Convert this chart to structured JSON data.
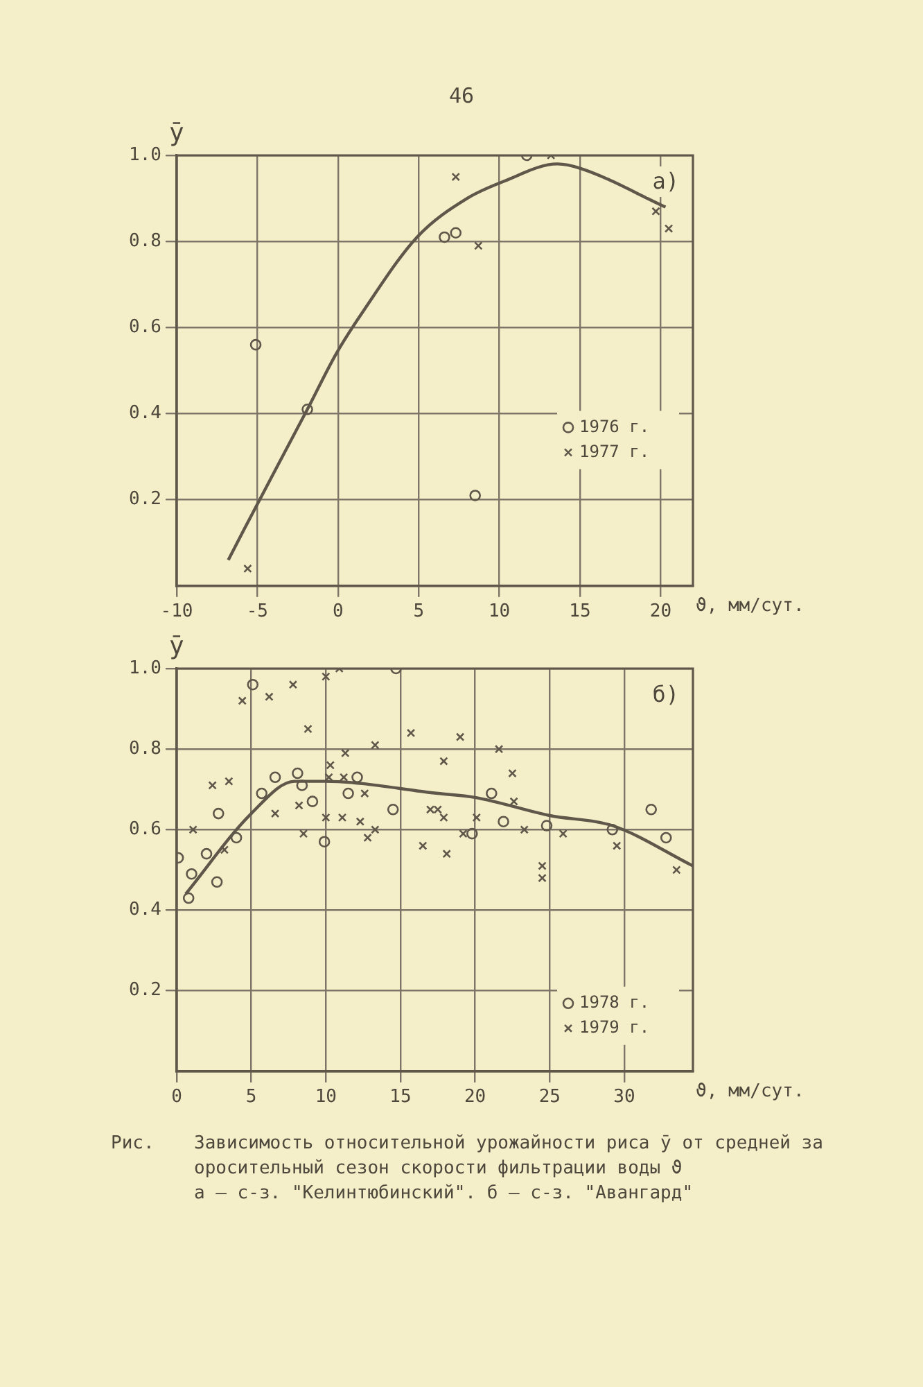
{
  "chart_data": [
    {
      "type": "scatter",
      "title": "а)",
      "xlabel": "ϑ, мм/сут.",
      "ylabel": "ȳ",
      "xlim": [
        -10,
        22
      ],
      "ylim": [
        0,
        1
      ],
      "xticks": [
        -10,
        -5,
        0,
        5,
        10,
        15,
        20
      ],
      "yticks": [
        0.2,
        0.4,
        0.6,
        0.8,
        {
          "value": 1,
          "label": "1.0"
        }
      ],
      "grid": true,
      "legend": "right",
      "annotations": [
        "46"
      ],
      "series": [
        {
          "name": "1976 г.",
          "color": "#5e574a",
          "marker": "circle",
          "x": [
            -5.1,
            -1.9,
            6.6,
            7.3,
            8.5,
            11.7
          ],
          "values": [
            0.56,
            0.41,
            0.81,
            0.82,
            0.21,
            1.0
          ]
        },
        {
          "name": "1977 г.",
          "color": "#5e574a",
          "marker": "cross",
          "x": [
            -5.6,
            7.3,
            8.7,
            13.2,
            19.7,
            20.5
          ],
          "values": [
            0.04,
            0.95,
            0.79,
            1.0,
            0.87,
            0.83
          ]
        },
        {
          "type": "line",
          "color": "#5e574a",
          "marker": "none",
          "line_style": "solid",
          "x": [
            -6.8,
            -5.7,
            -1.9,
            -0.1,
            1.6,
            4.9,
            8.0,
            10.3,
            13.6,
            15.0,
            20.3
          ],
          "values": [
            0.06,
            0.14,
            0.41,
            0.54,
            0.64,
            0.81,
            0.9,
            0.94,
            0.98,
            0.97,
            0.88
          ]
        }
      ]
    },
    {
      "type": "scatter",
      "title": "б)",
      "xlabel": "ϑ, мм/сут.",
      "ylabel": "ȳ",
      "xlim": [
        0,
        34.6
      ],
      "ylim": [
        0,
        1
      ],
      "xticks": [
        0,
        5,
        10,
        15,
        20,
        25,
        30
      ],
      "yticks": [
        0.2,
        0.4,
        0.6,
        0.8,
        {
          "value": 1,
          "label": "1.0"
        }
      ],
      "grid": true,
      "legend": "bottom right",
      "annotations": [
        "Рис.",
        "Зависимость относительной урожайности риса ȳ от средней за оросительный сезон скорости фильтрации воды ϑ",
        "а – с-з. \"Келинтюбинский\". б – с-з. \"Авангард\""
      ],
      "series": [
        {
          "name": "1978 г.",
          "color": "#5e574a",
          "marker": "circle",
          "x": [
            0.1,
            0.8,
            1.0,
            2.0,
            2.8,
            2.7,
            4.0,
            5.1,
            5.7,
            6.6,
            8.1,
            8.4,
            9.1,
            9.9,
            11.5,
            12.1,
            14.5,
            14.7,
            19.8,
            21.1,
            21.9,
            24.8,
            29.2,
            31.8,
            32.8
          ],
          "values": [
            0.53,
            0.43,
            0.49,
            0.54,
            0.64,
            0.47,
            0.58,
            0.96,
            0.69,
            0.73,
            0.74,
            0.71,
            0.67,
            0.57,
            0.69,
            0.73,
            0.65,
            1.0,
            0.59,
            0.69,
            0.62,
            0.61,
            0.6,
            0.65,
            0.58
          ]
        },
        {
          "name": "1979 г.",
          "color": "#5e574a",
          "marker": "cross",
          "x": [
            1.1,
            2.4,
            3.5,
            3.2,
            4.4,
            6.2,
            7.8,
            8.8,
            6.6,
            8.2,
            8.5,
            10.0,
            10.3,
            10.2,
            10.9,
            11.3,
            11.2,
            10.0,
            11.1,
            12.3,
            12.6,
            12.8,
            13.3,
            13.3,
            15.7,
            16.5,
            17.0,
            17.5,
            17.9,
            17.9,
            18.1,
            19.0,
            19.2,
            20.1,
            21.6,
            22.5,
            22.6,
            23.3,
            24.5,
            24.5,
            25.9,
            29.5,
            33.5
          ],
          "values": [
            0.6,
            0.71,
            0.72,
            0.55,
            0.92,
            0.93,
            0.96,
            0.85,
            0.64,
            0.66,
            0.59,
            0.98,
            0.76,
            0.73,
            1.0,
            0.79,
            0.73,
            0.63,
            0.63,
            0.62,
            0.69,
            0.58,
            0.6,
            0.81,
            0.84,
            0.56,
            0.65,
            0.65,
            0.63,
            0.77,
            0.54,
            0.83,
            0.59,
            0.63,
            0.8,
            0.74,
            0.67,
            0.6,
            0.51,
            0.48,
            0.59,
            0.56,
            0.5
          ]
        },
        {
          "type": "line",
          "color": "#5e574a",
          "marker": "none",
          "line_style": "solid",
          "x": [
            0.6,
            5.0,
            7.9,
            9.9,
            17.5,
            20.0,
            25.0,
            29.2,
            34.6
          ],
          "values": [
            0.44,
            0.64,
            0.72,
            0.72,
            0.69,
            0.68,
            0.635,
            0.61,
            0.51
          ]
        }
      ]
    }
  ]
}
